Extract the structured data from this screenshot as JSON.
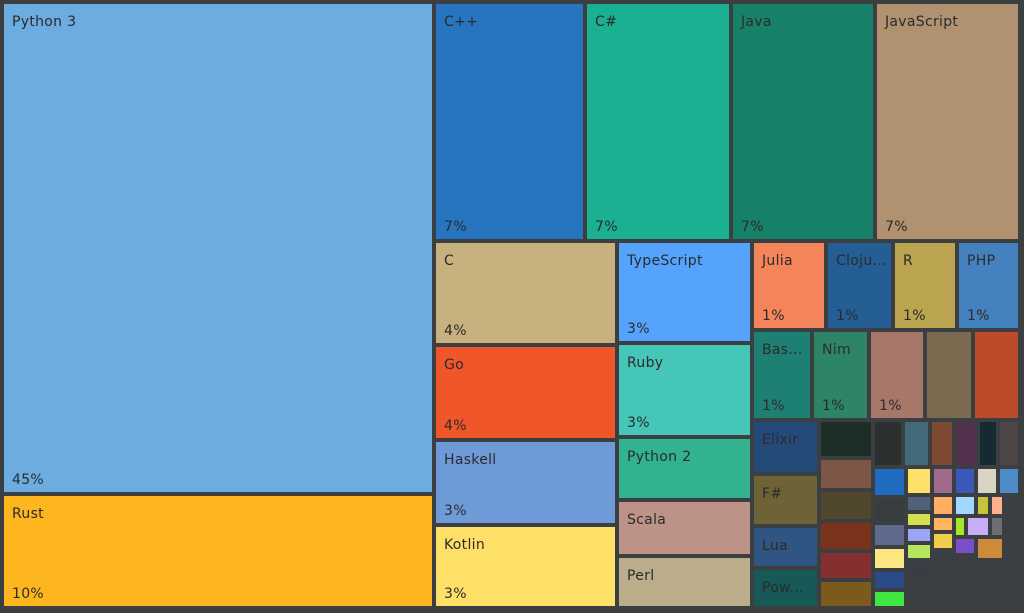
{
  "chart_data": {
    "type": "treemap",
    "title": "",
    "items": [
      {
        "name": "Python 3",
        "label": "Python 3",
        "value_label": "45%",
        "value": 45,
        "color": "#6cace0"
      },
      {
        "name": "Rust",
        "label": "Rust",
        "value_label": "10%",
        "value": 10,
        "color": "#feb61e"
      },
      {
        "name": "C++",
        "label": "C++",
        "value_label": "7%",
        "value": 7,
        "color": "#2775be"
      },
      {
        "name": "C#",
        "label": "C#",
        "value_label": "7%",
        "value": 7,
        "color": "#1ab092"
      },
      {
        "name": "Java",
        "label": "Java",
        "value_label": "7%",
        "value": 7,
        "color": "#178069"
      },
      {
        "name": "JavaScript",
        "label": "JavaScript",
        "value_label": "7%",
        "value": 7,
        "color": "#b09170"
      },
      {
        "name": "C",
        "label": "C",
        "value_label": "4%",
        "value": 4,
        "color": "#c7b17f"
      },
      {
        "name": "TypeScript",
        "label": "TypeScript",
        "value_label": "3%",
        "value": 3,
        "color": "#55a3fc"
      },
      {
        "name": "Go",
        "label": "Go",
        "value_label": "4%",
        "value": 4,
        "color": "#f05629"
      },
      {
        "name": "Ruby",
        "label": "Ruby",
        "value_label": "3%",
        "value": 3,
        "color": "#45c6b8"
      },
      {
        "name": "Haskell",
        "label": "Haskell",
        "value_label": "3%",
        "value": 3,
        "color": "#6e9bd8"
      },
      {
        "name": "Python 2",
        "label": "Python 2",
        "value_label": "",
        "value": 2,
        "color": "#33b290"
      },
      {
        "name": "Kotlin",
        "label": "Kotlin",
        "value_label": "3%",
        "value": 3,
        "color": "#fee068"
      },
      {
        "name": "Scala",
        "label": "Scala",
        "value_label": "",
        "value": 2,
        "color": "#bc9386"
      },
      {
        "name": "Perl",
        "label": "Perl",
        "value_label": "",
        "value": 2,
        "color": "#bbac8b"
      },
      {
        "name": "Julia",
        "label": "Julia",
        "value_label": "1%",
        "value": 1,
        "color": "#f4855a"
      },
      {
        "name": "Clojure",
        "label": "Cloju...",
        "value_label": "1%",
        "value": 1,
        "color": "#255d95"
      },
      {
        "name": "R",
        "label": "R",
        "value_label": "1%",
        "value": 1,
        "color": "#bba550"
      },
      {
        "name": "PHP",
        "label": "PHP",
        "value_label": "1%",
        "value": 1,
        "color": "#4482bf"
      },
      {
        "name": "Bash",
        "label": "Bas...",
        "value_label": "1%",
        "value": 1,
        "color": "#1e8072"
      },
      {
        "name": "Nim",
        "label": "Nim",
        "value_label": "1%",
        "value": 1,
        "color": "#2e8565"
      },
      {
        "name": "",
        "label": "",
        "value_label": "1%",
        "value": 1,
        "color": "#a7786a"
      },
      {
        "name": "",
        "label": "",
        "value_label": "",
        "value": 1,
        "color": "#7a6b50"
      },
      {
        "name": "",
        "label": "",
        "value_label": "",
        "value": 1,
        "color": "#bc4b2a"
      },
      {
        "name": "Elixir",
        "label": "Elixir",
        "value_label": "",
        "value": 1,
        "color": "#244a7a"
      },
      {
        "name": "F#",
        "label": "F#",
        "value_label": "",
        "value": 1,
        "color": "#6e6237"
      },
      {
        "name": "Lua",
        "label": "Lua",
        "value_label": "",
        "value": 1,
        "color": "#2f5582"
      },
      {
        "name": "PowerShell",
        "label": "Pow...",
        "value_label": "",
        "value": 1,
        "color": "#165957"
      }
    ],
    "minor_colors": [
      "#1d2e26",
      "#7d5648",
      "#51472c",
      "#7b331c",
      "#852f31",
      "#7b5a1e",
      "#2d3031",
      "#436a78",
      "#7e4a34",
      "#53324d",
      "#152a31",
      "#4d4546",
      "#1e6dc0",
      "#fde067",
      "#a16a8c",
      "#3a58b8",
      "#d9d4c4",
      "#4e8cc8",
      "#3a3d40",
      "#52607a",
      "#ffae62",
      "#a0d8ff",
      "#c8c33a",
      "#ffb08a",
      "#5f6b8c",
      "#d4e04f",
      "#ffb460",
      "#a4e72a",
      "#c8aef7",
      "#6b6f70",
      "#fbe680",
      "#9aa5f8",
      "#f0cc4c",
      "#2a4b88",
      "#b6e55e",
      "#7b4fc7",
      "#42e642",
      "#3a3d45",
      "#cc8a3a"
    ]
  }
}
